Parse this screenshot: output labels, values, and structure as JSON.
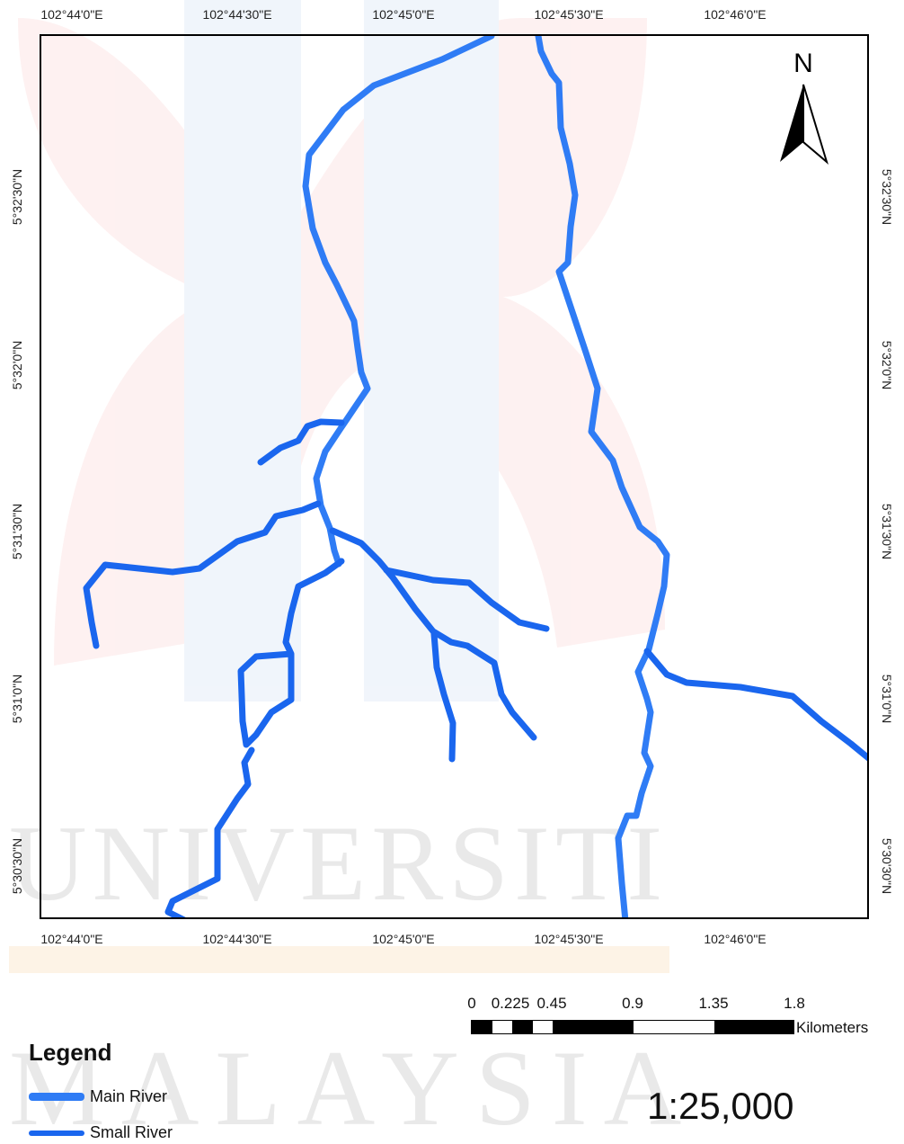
{
  "map": {
    "north_label": "N",
    "river_color": "#1a66ee",
    "main_river_color": "#2f7cf5",
    "top_x_ticks": [
      "102°44'0\"E",
      "102°44'30\"E",
      "102°45'0\"E",
      "102°45'30\"E",
      "102°46'0\"E"
    ],
    "bottom_x_ticks": [
      "102°44'0\"E",
      "102°44'30\"E",
      "102°45'0\"E",
      "102°45'30\"E",
      "102°46'0\"E"
    ],
    "left_y_ticks": [
      "5°32'30\"N",
      "5°32'0\"N",
      "5°31'30\"N",
      "5°31'0\"N",
      "5°30'30\"N"
    ],
    "right_y_ticks": [
      "5°32'30\"N",
      "5°32'0\"N",
      "5°31'30\"N",
      "5°31'0\"N",
      "5°30'30\"N"
    ]
  },
  "scalebar": {
    "labels": [
      "0",
      "0.225",
      "0.45",
      "0.9",
      "1.35",
      "1.8"
    ],
    "unit": "Kilometers",
    "ratio": "1:25,000"
  },
  "legend": {
    "title": "Legend",
    "items": [
      {
        "label": "Main River"
      },
      {
        "label": "Small River"
      }
    ]
  },
  "watermark": {
    "line1": "UNIVERSITI",
    "line2": "MALAYSIA"
  }
}
